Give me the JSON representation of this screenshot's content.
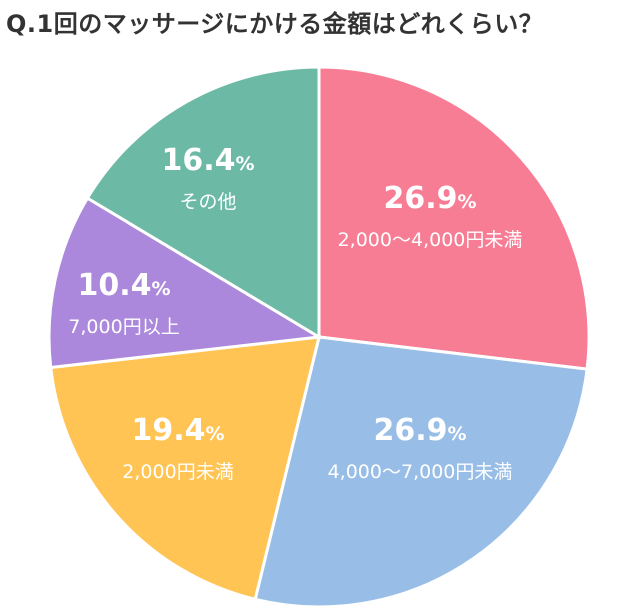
{
  "chart_data": {
    "type": "pie",
    "title": "Q.1回のマッサージにかける金額はどれくらい？",
    "start": "top",
    "direction": "clockwise",
    "slices": [
      {
        "label": "2,000〜4,000円未満",
        "value": 26.9,
        "display": "26.9",
        "color": "#F77D95"
      },
      {
        "label": "4,000〜7,000円未満",
        "value": 26.9,
        "display": "26.9",
        "color": "#98BEE7"
      },
      {
        "label": "2,000円未満",
        "value": 19.4,
        "display": "19.4",
        "color": "#FFC453"
      },
      {
        "label": "7,000円以上",
        "value": 10.4,
        "display": "10.4",
        "color": "#AB88DB"
      },
      {
        "label": "その他",
        "value": 16.4,
        "display": "16.4",
        "color": "#6CB9A6"
      }
    ],
    "unit": "%"
  }
}
